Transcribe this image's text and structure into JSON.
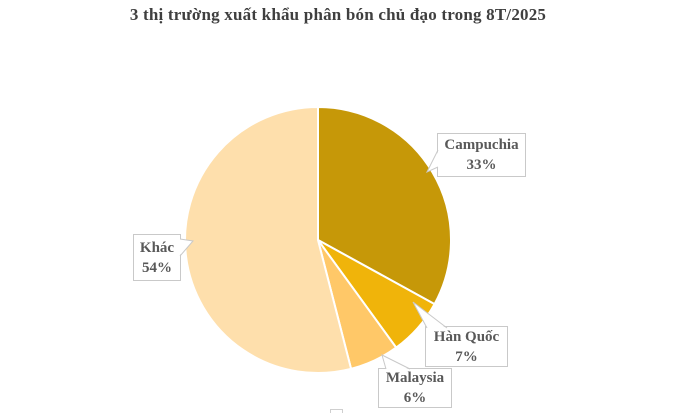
{
  "page": {
    "background": "#ffffff"
  },
  "chart_data": {
    "type": "pie",
    "title": "3 thị trường xuất khẩu phân bón chủ đạo trong 8T/2025",
    "unit": "%",
    "start_angle_deg_from_top": 0,
    "direction": "clockwise",
    "slices": [
      {
        "id": "campuchia",
        "label": "Campuchia",
        "value": 33,
        "pct_label": "33%",
        "color": "#C69808"
      },
      {
        "id": "han-quoc",
        "label": "Hàn Quốc",
        "value": 7,
        "pct_label": "7%",
        "color": "#F0B40A"
      },
      {
        "id": "malaysia",
        "label": "Malaysia",
        "value": 6,
        "pct_label": "6%",
        "color": "#FFC868"
      },
      {
        "id": "khac",
        "label": "Khác",
        "value": 54,
        "pct_label": "54%",
        "color": "#FEDFAC"
      }
    ],
    "slice_stroke_color": "#FFFFFF",
    "callout_border_color": "#C9C9C9",
    "callout_text_color": "#595959",
    "title_text_color": "#3F3F3F",
    "legend_note": "partial legend swatch visible at bottom edge"
  }
}
